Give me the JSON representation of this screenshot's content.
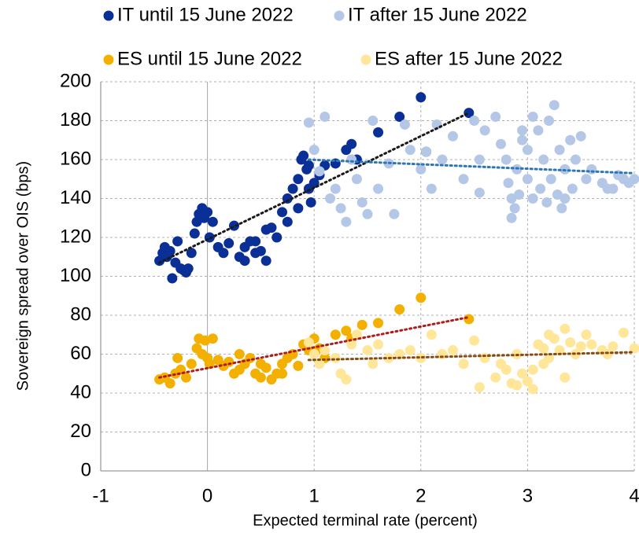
{
  "chart_data": {
    "type": "scatter",
    "x_label": "Expected terminal rate (percent)",
    "y_label": "Sovereign spread over OIS (bps)",
    "xlim": [
      -1,
      4
    ],
    "xticks": [
      -1,
      0,
      1,
      2,
      3,
      4
    ],
    "ylim": [
      0,
      200
    ],
    "yticks": [
      0,
      20,
      40,
      60,
      80,
      100,
      120,
      140,
      160,
      180,
      200
    ],
    "grid": true,
    "legend": "top",
    "series": [
      {
        "name": "IT until 15 June 2022",
        "color": "#0a2f96",
        "x": [
          -0.45,
          -0.42,
          -0.4,
          -0.38,
          -0.35,
          -0.33,
          -0.3,
          -0.28,
          -0.25,
          -0.22,
          -0.2,
          -0.18,
          -0.15,
          -0.12,
          -0.1,
          -0.08,
          -0.05,
          -0.03,
          0,
          0.02,
          0.05,
          0.1,
          0.15,
          0.2,
          0.25,
          0.3,
          0.35,
          0.4,
          0.45,
          0.5,
          0.55,
          0.6,
          0.65,
          0.7,
          0.75,
          0.8,
          0.85,
          0.88,
          0.9,
          0.93,
          0.95,
          0.97,
          1.0,
          1.05,
          1.1,
          1.2,
          1.3,
          1.35,
          1.4,
          1.6,
          1.8,
          2.0,
          2.05,
          2.45,
          0.55,
          0.45,
          0.35,
          0.75,
          0.85,
          0.95
        ],
        "values": [
          108,
          112,
          115,
          110,
          113,
          99,
          107,
          118,
          104,
          103,
          102,
          104,
          112,
          122,
          128,
          132,
          135,
          130,
          133,
          120,
          128,
          115,
          112,
          117,
          126,
          110,
          115,
          118,
          112,
          113,
          108,
          125,
          120,
          133,
          140,
          145,
          150,
          160,
          162,
          155,
          145,
          138,
          148,
          152,
          157,
          158,
          165,
          168,
          160,
          174,
          182,
          192,
          164,
          184,
          124,
          118,
          108,
          128,
          135,
          157
        ],
        "trend": {
          "color": "#1a1a1a",
          "x": [
            -0.45,
            2.45
          ],
          "y": [
            107,
            184
          ]
        }
      },
      {
        "name": "IT after 15 June 2022",
        "color": "#b4c7e7",
        "x": [
          0.95,
          1.0,
          1.05,
          1.1,
          1.15,
          1.2,
          1.25,
          1.3,
          1.35,
          1.4,
          1.45,
          1.5,
          1.55,
          1.6,
          1.7,
          1.75,
          1.85,
          1.9,
          2.0,
          2.05,
          2.1,
          2.15,
          2.2,
          2.3,
          2.4,
          2.5,
          2.55,
          2.6,
          2.7,
          2.75,
          2.8,
          2.82,
          2.85,
          2.88,
          2.9,
          2.92,
          2.95,
          3.0,
          3.0,
          3.05,
          3.1,
          3.12,
          3.15,
          3.18,
          3.2,
          3.22,
          3.25,
          3.28,
          3.3,
          3.32,
          3.35,
          3.4,
          3.42,
          3.45,
          3.5,
          3.55,
          3.6,
          3.7,
          3.75,
          3.8,
          3.85,
          3.9,
          3.95,
          4.0,
          2.85,
          3.05,
          3.35,
          2.55,
          2.95
        ],
        "values": [
          179,
          165,
          154,
          182,
          140,
          145,
          135,
          128,
          160,
          150,
          138,
          132,
          180,
          145,
          158,
          132,
          178,
          165,
          155,
          164,
          145,
          178,
          160,
          172,
          150,
          180,
          160,
          175,
          182,
          168,
          160,
          148,
          140,
          135,
          155,
          142,
          170,
          165,
          150,
          140,
          175,
          145,
          160,
          138,
          180,
          150,
          188,
          142,
          165,
          135,
          155,
          170,
          145,
          160,
          172,
          150,
          155,
          148,
          145,
          145,
          152,
          150,
          148,
          150,
          130,
          182,
          140,
          143,
          175
        ],
        "trend": {
          "color": "#2e75b6",
          "x": [
            0.95,
            4
          ],
          "y": [
            160,
            153
          ]
        }
      },
      {
        "name": "ES until 15 June 2022",
        "color": "#f4b000",
        "x": [
          -0.45,
          -0.4,
          -0.35,
          -0.3,
          -0.28,
          -0.25,
          -0.2,
          -0.15,
          -0.1,
          -0.08,
          -0.05,
          -0.02,
          0,
          0.02,
          0.05,
          0.1,
          0.15,
          0.2,
          0.25,
          0.3,
          0.35,
          0.4,
          0.45,
          0.5,
          0.55,
          0.6,
          0.65,
          0.7,
          0.75,
          0.8,
          0.85,
          0.9,
          0.95,
          1.0,
          1.05,
          1.1,
          1.2,
          1.3,
          1.35,
          1.45,
          1.6,
          1.8,
          2.0,
          2.45,
          0.3,
          0.5,
          0.7
        ],
        "values": [
          47,
          48,
          45,
          50,
          58,
          52,
          48,
          55,
          63,
          68,
          60,
          67,
          58,
          55,
          68,
          57,
          54,
          56,
          50,
          52,
          55,
          58,
          50,
          48,
          53,
          47,
          50,
          55,
          58,
          60,
          54,
          65,
          62,
          68,
          63,
          58,
          70,
          72,
          68,
          75,
          76,
          83,
          89,
          78,
          60,
          55,
          50
        ],
        "trend": {
          "color": "#b01c1c",
          "x": [
            -0.45,
            2.45
          ],
          "y": [
            48,
            79
          ]
        }
      },
      {
        "name": "ES after 15 June 2022",
        "color": "#ffe699",
        "x": [
          0.95,
          1.0,
          1.05,
          1.1,
          1.2,
          1.25,
          1.3,
          1.35,
          1.4,
          1.5,
          1.55,
          1.6,
          1.7,
          1.8,
          1.9,
          2.0,
          2.1,
          2.2,
          2.3,
          2.4,
          2.5,
          2.55,
          2.6,
          2.7,
          2.75,
          2.8,
          2.85,
          2.9,
          2.95,
          3.0,
          3.05,
          3.1,
          3.15,
          3.2,
          3.25,
          3.3,
          3.35,
          3.4,
          3.45,
          3.5,
          3.55,
          3.6,
          3.7,
          3.75,
          3.8,
          3.9,
          4.0,
          2.9,
          3.05,
          3.2,
          3.35,
          3.15
        ],
        "values": [
          66,
          60,
          55,
          62,
          58,
          50,
          47,
          65,
          70,
          62,
          55,
          65,
          58,
          60,
          62,
          58,
          70,
          60,
          62,
          55,
          67,
          43,
          58,
          48,
          55,
          52,
          45,
          60,
          50,
          46,
          42,
          65,
          55,
          70,
          68,
          62,
          73,
          66,
          60,
          64,
          70,
          65,
          62,
          60,
          64,
          71,
          63,
          44,
          52,
          58,
          48,
          63
        ],
        "trend": {
          "color": "#8b4a12",
          "x": [
            0.95,
            4
          ],
          "y": [
            57,
            61
          ]
        }
      }
    ]
  }
}
